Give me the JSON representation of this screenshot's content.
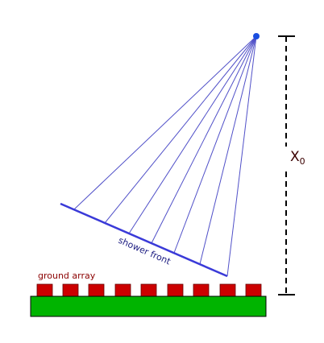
{
  "labels": {
    "shower_front": "shower front",
    "ground_array": "ground array",
    "depth": "X",
    "depth_subscript": "0"
  }
}
